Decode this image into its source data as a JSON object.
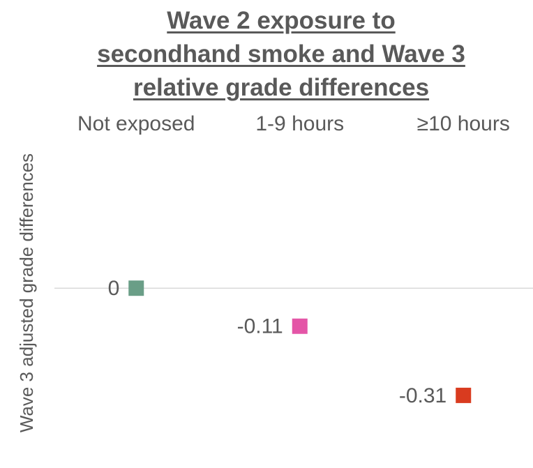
{
  "chart_data": {
    "type": "dot",
    "title": "Wave 2 exposure to secondhand smoke and Wave 3 relative grade differences",
    "y_label": "Wave 3 adjusted grade differences",
    "categories": [
      "Not exposed",
      "1-9 hours",
      "≥10 hours"
    ],
    "series": [
      {
        "name": null,
        "values": [
          0,
          -0.11,
          -0.31
        ],
        "colors": [
          "#6a9e87",
          "#e455a7",
          "#d93b1f"
        ]
      }
    ],
    "ylim": [
      -0.52,
      0.43
    ]
  }
}
